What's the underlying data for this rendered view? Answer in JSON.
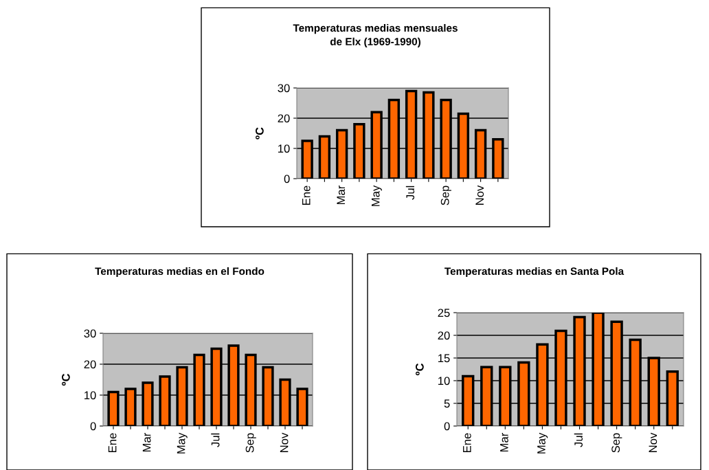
{
  "chart_data": [
    {
      "type": "bar",
      "title": "Temperaturas medias mensuales\nde Elx (1969-1990)",
      "ylabel": "ºC",
      "categories": [
        "Ene",
        null,
        "Mar",
        null,
        "May",
        null,
        "Jul",
        null,
        "Sep",
        null,
        "Nov",
        null
      ],
      "values": [
        12.5,
        14,
        16,
        18,
        22,
        26,
        29,
        28.5,
        26,
        21.5,
        16,
        13
      ],
      "color": "#ff6600",
      "ylim": [
        0,
        30
      ],
      "yticks": [
        0,
        10,
        20,
        30
      ],
      "grid": "y"
    },
    {
      "type": "bar",
      "title": "Temperaturas medias en el Fondo",
      "ylabel": "ºC",
      "categories": [
        "Ene",
        null,
        "Mar",
        null,
        "May",
        null,
        "Jul",
        null,
        "Sep",
        null,
        "Nov",
        null
      ],
      "values": [
        11,
        12,
        14,
        16,
        19,
        23,
        25,
        26,
        23,
        19,
        15,
        12
      ],
      "color": "#ff6600",
      "ylim": [
        0,
        30
      ],
      "yticks": [
        0,
        10,
        20,
        30
      ],
      "grid": "y"
    },
    {
      "type": "bar",
      "title": "Temperaturas medias en Santa Pola",
      "ylabel": "ºC",
      "categories": [
        "Ene",
        null,
        "Mar",
        null,
        "May",
        null,
        "Jul",
        null,
        "Sep",
        null,
        "Nov",
        null
      ],
      "values": [
        11,
        13,
        13,
        14,
        18,
        21,
        24,
        25,
        23,
        19,
        15,
        12
      ],
      "color": "#ff6600",
      "ylim": [
        0,
        25
      ],
      "yticks": [
        0,
        5,
        10,
        15,
        20,
        25
      ],
      "grid": "y"
    }
  ]
}
